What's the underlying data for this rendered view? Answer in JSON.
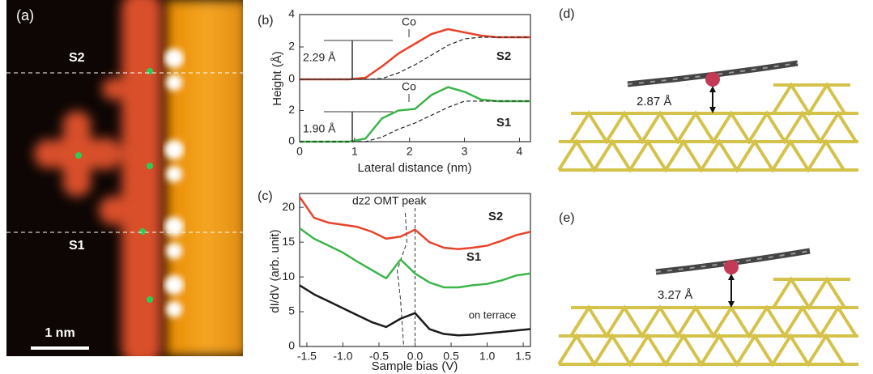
{
  "panel_a": {
    "label": "(a)",
    "lines": [
      "S2",
      "S1"
    ],
    "scale_bar": "1 nm"
  },
  "chart_data": [
    {
      "type": "line",
      "title": "(b)",
      "ylabel": "Height (Å)",
      "marker_label": "Co",
      "step_label": "2.29 Å",
      "xlim": [
        0,
        4.2
      ],
      "ylim": [
        0,
        4
      ],
      "yticks": [
        0,
        2,
        4
      ],
      "x": [
        0,
        0.3,
        0.6,
        0.9,
        1.2,
        1.5,
        1.8,
        2.1,
        2.4,
        2.7,
        3.0,
        3.3,
        3.6,
        3.9,
        4.2
      ],
      "series": [
        {
          "name": "S2",
          "color": "#e8432a",
          "values": [
            0,
            0,
            0,
            0,
            0.1,
            0.8,
            1.6,
            2.2,
            2.8,
            3.1,
            2.9,
            2.7,
            2.6,
            2.6,
            2.6
          ]
        },
        {
          "color": "#222222",
          "dash": true,
          "values": [
            0,
            0,
            0,
            0,
            0,
            0.05,
            0.4,
            0.9,
            1.5,
            2.1,
            2.5,
            2.6,
            2.6,
            2.6,
            2.6
          ]
        }
      ]
    },
    {
      "type": "line",
      "xlabel": "Lateral distance (nm)",
      "marker_label": "Co",
      "step_label": "1.90 Å",
      "xlim": [
        0,
        4.2
      ],
      "xticks": [
        0,
        1,
        2,
        3,
        4
      ],
      "ylim": [
        0,
        4
      ],
      "yticks": [
        0,
        2
      ],
      "x": [
        0,
        0.3,
        0.6,
        0.9,
        1.2,
        1.5,
        1.8,
        2.1,
        2.4,
        2.7,
        3.0,
        3.3,
        3.6,
        3.9,
        4.2
      ],
      "series": [
        {
          "name": "S1",
          "color": "#3cb54a",
          "values": [
            0,
            0,
            0,
            0,
            0.2,
            1.5,
            2.0,
            2.1,
            3.0,
            3.5,
            3.2,
            2.7,
            2.6,
            2.6,
            2.6
          ]
        },
        {
          "color": "#222222",
          "dash": true,
          "values": [
            0,
            0,
            0,
            0,
            0,
            0.3,
            0.8,
            1.2,
            1.7,
            2.2,
            2.6,
            2.6,
            2.6,
            2.6,
            2.6
          ]
        }
      ]
    },
    {
      "type": "line",
      "title": "(c)",
      "xlabel": "Sample bias (V)",
      "ylabel": "dI/dV (arb. unit)",
      "annotation": "dz2 OMT peak",
      "xlim": [
        -1.6,
        1.6
      ],
      "ylim": [
        0,
        22
      ],
      "xticks": [
        -1.5,
        {
          "value": -1.0,
          "label": "-1.0"
        },
        -0.5,
        {
          "value": 0,
          "label": "0.0"
        },
        0.5,
        {
          "value": 1.0,
          "label": "1.0"
        },
        1.5
      ],
      "yticks": [
        0,
        5,
        10,
        15,
        20
      ],
      "x": [
        -1.6,
        -1.4,
        -1.2,
        -1.0,
        -0.8,
        -0.6,
        -0.4,
        -0.2,
        0.0,
        0.2,
        0.4,
        0.6,
        0.8,
        1.0,
        1.2,
        1.4,
        1.6
      ],
      "series": [
        {
          "name": "S2",
          "color": "#e8432a",
          "values": [
            21.5,
            18.5,
            17.8,
            17.5,
            17.2,
            16.5,
            15.5,
            15.8,
            16.8,
            15.0,
            14.2,
            14.0,
            14.2,
            14.5,
            15.2,
            16.0,
            16.5
          ]
        },
        {
          "name": "S1",
          "color": "#3cb54a",
          "values": [
            17.0,
            15.5,
            14.5,
            13.5,
            12.2,
            11.0,
            9.8,
            12.5,
            10.5,
            9.2,
            8.5,
            8.5,
            8.8,
            9.0,
            9.5,
            10.2,
            10.5
          ]
        },
        {
          "name": "on terrace",
          "color": "#1a1a1a",
          "values": [
            8.8,
            7.5,
            6.5,
            5.5,
            4.5,
            3.5,
            2.8,
            4.0,
            4.8,
            2.5,
            1.8,
            1.6,
            1.7,
            1.9,
            2.1,
            2.3,
            2.5
          ]
        }
      ]
    }
  ],
  "panel_d": {
    "label": "(d)",
    "height": "2.87 Å"
  },
  "panel_e": {
    "label": "(e)",
    "height": "3.27 Å"
  }
}
